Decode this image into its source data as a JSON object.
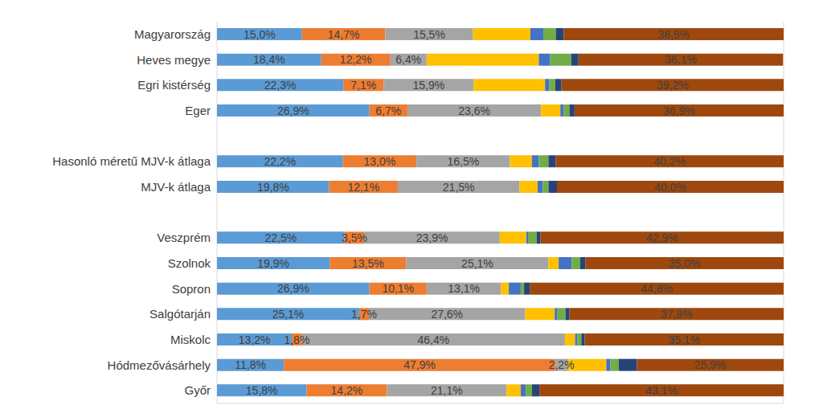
{
  "chart_data": {
    "type": "bar",
    "orientation": "horizontal",
    "stacked": true,
    "grid": true,
    "tick_labels": "y",
    "categories": [
      "Magyarország",
      "Heves megye",
      "Egri kistérség",
      "Eger",
      null,
      "Hasonló méretű MJV-k átlaga",
      "MJV-k átlaga",
      null,
      "Veszprém",
      "Szolnok",
      "Sopron",
      "Salgótarján",
      "Miskolc",
      "Hódmezővásárhely",
      "Győr"
    ],
    "xlim": [
      0,
      100
    ],
    "xticks": [
      0,
      10,
      20,
      30,
      40,
      50,
      60,
      70,
      80,
      90,
      100
    ],
    "series": [
      {
        "color": "#5b9bd5",
        "data_labels": true,
        "values": [
          15.0,
          18.4,
          22.3,
          26.9,
          null,
          22.2,
          19.8,
          null,
          22.5,
          19.9,
          26.9,
          25.1,
          13.2,
          11.8,
          15.8
        ],
        "value_labels": [
          "15,0%",
          "18,4%",
          "22,3%",
          "26,9%",
          null,
          "22,2%",
          "19,8%",
          null,
          "22,5%",
          "19,9%",
          "26,9%",
          "25,1%",
          "13,2%",
          "11,8%",
          "15,8%"
        ]
      },
      {
        "color": "#ed7d31",
        "data_labels": true,
        "values": [
          14.7,
          12.2,
          7.1,
          6.7,
          null,
          13.0,
          12.1,
          null,
          3.5,
          13.5,
          10.1,
          1.7,
          1.8,
          47.9,
          14.2
        ],
        "value_labels": [
          "14,7%",
          "12,2%",
          "7,1%",
          "6,7%",
          null,
          "13,0%",
          "12,1%",
          null,
          "3,5%",
          "13,5%",
          "10,1%",
          "1,7%",
          "1,8%",
          "47,9%",
          "14,2%"
        ]
      },
      {
        "color": "#a5a5a5",
        "data_labels": true,
        "values": [
          15.5,
          6.4,
          15.9,
          23.6,
          null,
          16.5,
          21.5,
          null,
          23.9,
          25.1,
          13.1,
          27.6,
          46.4,
          2.2,
          21.1
        ],
        "value_labels": [
          "15,5%",
          "6,4%",
          "15,9%",
          "23,6%",
          null,
          "16,5%",
          "21,5%",
          null,
          "23,9%",
          "25,1%",
          "13,1%",
          "27,6%",
          "46,4%",
          "2,2%",
          "21,1%"
        ]
      },
      {
        "color": "#ffc000",
        "data_labels": false,
        "values": [
          10.1,
          19.8,
          12.6,
          3.4,
          null,
          3.9,
          3.2,
          null,
          4.7,
          1.8,
          1.4,
          5.2,
          1.8,
          6.8,
          2.5
        ]
      },
      {
        "color": "#4472c4",
        "data_labels": false,
        "values": [
          2.3,
          2.0,
          0.7,
          0.6,
          null,
          1.2,
          0.9,
          null,
          0.3,
          2.3,
          2.1,
          0.5,
          0.4,
          0.7,
          0.9
        ]
      },
      {
        "color": "#70ad47",
        "data_labels": false,
        "values": [
          2.2,
          3.7,
          1.1,
          1.0,
          null,
          1.7,
          1.0,
          null,
          1.5,
          1.5,
          0.6,
          1.4,
          0.7,
          1.5,
          1.1
        ]
      },
      {
        "color": "#264478",
        "data_labels": false,
        "values": [
          1.4,
          1.3,
          1.1,
          0.9,
          null,
          1.3,
          1.5,
          null,
          0.7,
          0.9,
          1.0,
          0.7,
          0.6,
          3.2,
          1.3
        ]
      },
      {
        "color": "#9e480e",
        "data_labels": true,
        "values": [
          38.8,
          36.1,
          39.2,
          36.9,
          null,
          40.2,
          40.0,
          null,
          42.9,
          35.0,
          44.8,
          37.8,
          35.1,
          25.9,
          43.1
        ],
        "value_labels": [
          "38,8%",
          "36,1%",
          "39,2%",
          "36,9%",
          null,
          "40,2%",
          "40,0%",
          null,
          "42,9%",
          "35,0%",
          "44,8%",
          "37,8%",
          "35,1%",
          "25,9%",
          "43,1%"
        ]
      }
    ]
  }
}
